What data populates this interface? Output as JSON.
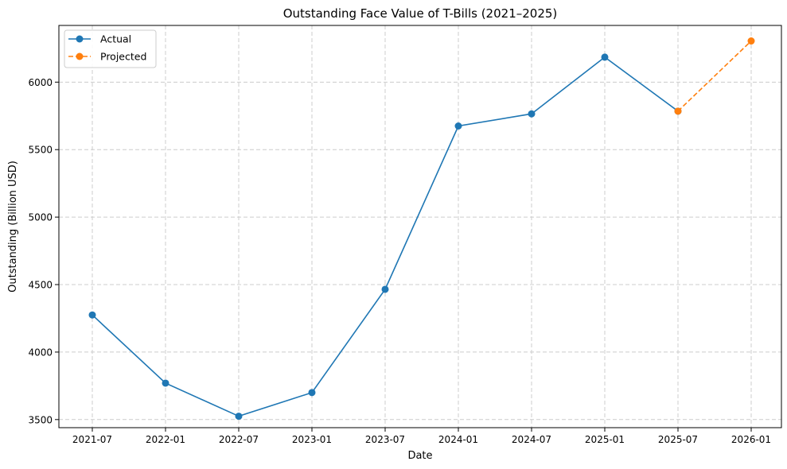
{
  "chart_data": {
    "type": "line",
    "title": "Outstanding Face Value of T-Bills (2021–2025)",
    "xlabel": "Date",
    "ylabel": "Outstanding (Billion USD)",
    "x_ticks": [
      "2021-07",
      "2022-01",
      "2022-07",
      "2023-01",
      "2023-07",
      "2024-01",
      "2024-07",
      "2025-01",
      "2025-07",
      "2026-01"
    ],
    "y_ticks": [
      3500,
      4000,
      4500,
      5000,
      5500,
      6000
    ],
    "ylim": [
      3440,
      6420
    ],
    "grid": true,
    "legend_position": "top-left",
    "series": [
      {
        "name": "Actual",
        "color": "#1f77b4",
        "line_style": "solid",
        "marker": "circle",
        "points": [
          {
            "x": "2021-07",
            "y": 4275
          },
          {
            "x": "2022-01",
            "y": 3770
          },
          {
            "x": "2022-07",
            "y": 3525
          },
          {
            "x": "2023-01",
            "y": 3700
          },
          {
            "x": "2023-07",
            "y": 4465
          },
          {
            "x": "2024-01",
            "y": 5675
          },
          {
            "x": "2024-07",
            "y": 5765
          },
          {
            "x": "2025-01",
            "y": 6185
          },
          {
            "x": "2025-07",
            "y": 5785
          }
        ]
      },
      {
        "name": "Projected",
        "color": "#ff7f0e",
        "line_style": "dashed",
        "marker": "circle",
        "points": [
          {
            "x": "2025-07",
            "y": 5785
          },
          {
            "x": "2026-01",
            "y": 6305
          }
        ]
      }
    ]
  }
}
